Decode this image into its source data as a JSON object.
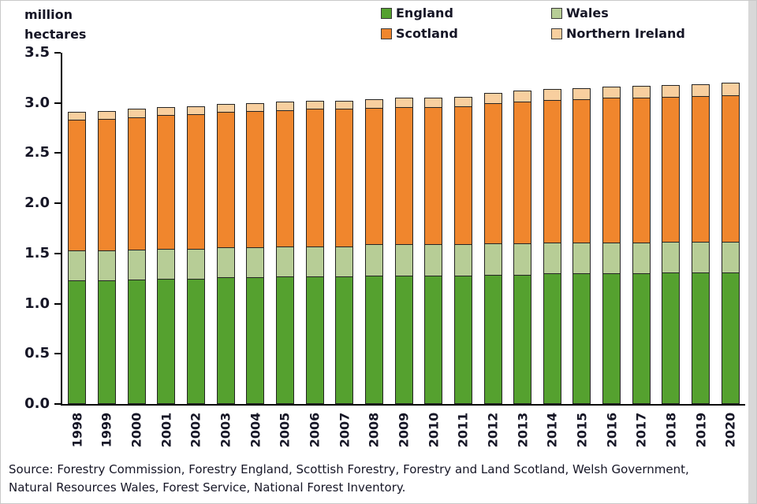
{
  "header": {
    "y_axis_label_line1": "million",
    "y_axis_label_line2": "hectares"
  },
  "legend": [
    {
      "label": "England",
      "color": "#55a12f"
    },
    {
      "label": "Wales",
      "color": "#b7cd96"
    },
    {
      "label": "Scotland",
      "color": "#f0862d"
    },
    {
      "label": "Northern Ireland",
      "color": "#f8cf9f"
    }
  ],
  "chart_data": {
    "type": "bar",
    "stacked": true,
    "title": "",
    "ylabel": "million hectares",
    "xlabel": "",
    "ylim": [
      0,
      3.5
    ],
    "ytick_step": 0.5,
    "grid": false,
    "legend_position": "top",
    "categories": [
      "1998",
      "1999",
      "2000",
      "2001",
      "2002",
      "2003",
      "2004",
      "2005",
      "2006",
      "2007",
      "2008",
      "2009",
      "2010",
      "2011",
      "2012",
      "2013",
      "2014",
      "2015",
      "2016",
      "2017",
      "2018",
      "2019",
      "2020"
    ],
    "series": [
      {
        "name": "England",
        "color": "#55a12f",
        "values": [
          1.23,
          1.23,
          1.24,
          1.25,
          1.25,
          1.26,
          1.26,
          1.27,
          1.27,
          1.27,
          1.28,
          1.28,
          1.28,
          1.28,
          1.29,
          1.29,
          1.3,
          1.3,
          1.3,
          1.3,
          1.31,
          1.31,
          1.31
        ]
      },
      {
        "name": "Wales",
        "color": "#b7cd96",
        "values": [
          0.3,
          0.3,
          0.3,
          0.3,
          0.3,
          0.3,
          0.3,
          0.3,
          0.3,
          0.3,
          0.31,
          0.31,
          0.31,
          0.31,
          0.31,
          0.31,
          0.31,
          0.31,
          0.31,
          0.31,
          0.31,
          0.31,
          0.31
        ]
      },
      {
        "name": "Scotland",
        "color": "#f0862d",
        "values": [
          1.3,
          1.31,
          1.32,
          1.33,
          1.34,
          1.35,
          1.36,
          1.36,
          1.37,
          1.37,
          1.36,
          1.37,
          1.37,
          1.38,
          1.4,
          1.41,
          1.42,
          1.43,
          1.44,
          1.44,
          1.44,
          1.45,
          1.46
        ]
      },
      {
        "name": "Northern Ireland",
        "color": "#f8cf9f",
        "values": [
          0.08,
          0.08,
          0.08,
          0.08,
          0.08,
          0.08,
          0.08,
          0.08,
          0.08,
          0.08,
          0.09,
          0.09,
          0.09,
          0.09,
          0.1,
          0.11,
          0.11,
          0.11,
          0.11,
          0.12,
          0.12,
          0.12,
          0.12
        ]
      }
    ]
  },
  "source": {
    "text": "Source: Forestry Commission, Forestry England, Scottish Forestry, Forestry and Land Scotland, Welsh Government, Natural Resources Wales, Forest Service, National Forest Inventory."
  }
}
